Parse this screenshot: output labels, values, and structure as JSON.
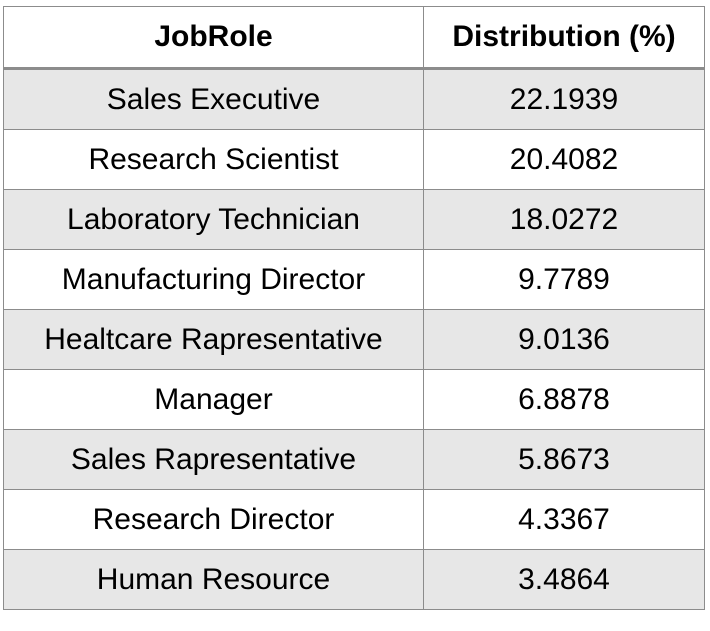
{
  "chart_data": {
    "type": "table",
    "columns": [
      "JobRole",
      "Distribution (%)"
    ],
    "rows": [
      [
        "Sales Executive",
        "22.1939"
      ],
      [
        "Research Scientist",
        "20.4082"
      ],
      [
        "Laboratory Technician",
        "18.0272"
      ],
      [
        "Manufacturing Director",
        "9.7789"
      ],
      [
        "Healtcare Rapresentative",
        "9.0136"
      ],
      [
        "Manager",
        "6.8878"
      ],
      [
        "Sales Rapresentative",
        "5.8673"
      ],
      [
        "Research Director",
        "4.3367"
      ],
      [
        "Human Resource",
        "3.4864"
      ]
    ],
    "colors": {
      "header_bg": "#ffffff",
      "row_band": "#e7e7e7",
      "border": "#8c8c8c"
    }
  }
}
